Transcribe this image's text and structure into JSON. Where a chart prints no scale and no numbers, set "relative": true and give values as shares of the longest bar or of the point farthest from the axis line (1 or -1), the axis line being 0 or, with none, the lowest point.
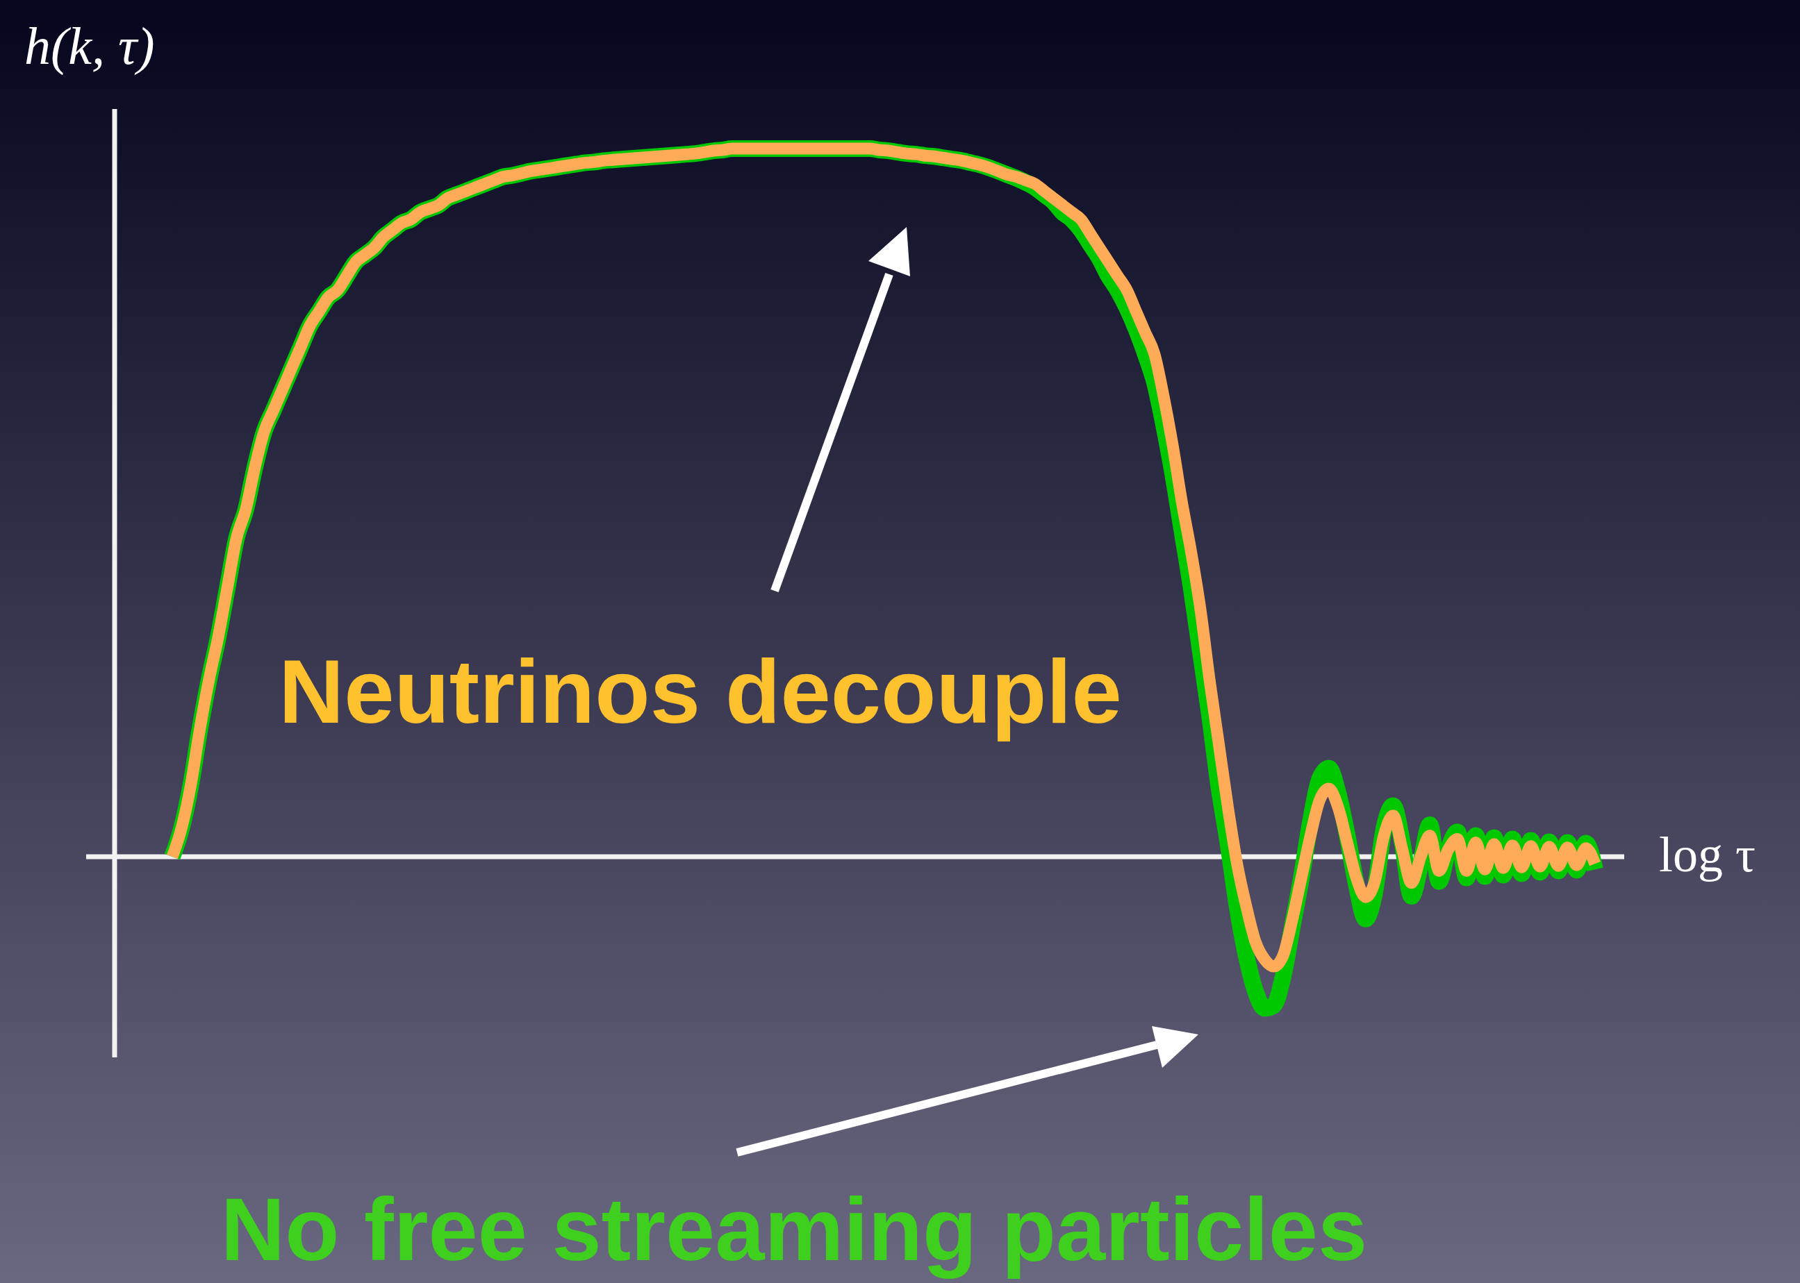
{
  "chart_data": {
    "type": "line",
    "relative": true,
    "xlabel": "log τ",
    "ylabel": "h(k, τ)",
    "annotations": [
      "Neutrinos decouple",
      "No free streaming particles"
    ],
    "categories": [
      null,
      null,
      null,
      null,
      null,
      null,
      null,
      null,
      null,
      null,
      null,
      null,
      null,
      null,
      null,
      null,
      null,
      null,
      null,
      null,
      null,
      null,
      null,
      null,
      null,
      null,
      null,
      null,
      null,
      null,
      null,
      null,
      null,
      null,
      null,
      null,
      null,
      null,
      null,
      null,
      null,
      null,
      null,
      null,
      null,
      null,
      null,
      null,
      null,
      null,
      null,
      null,
      null,
      null,
      null,
      null,
      null,
      null,
      null,
      null,
      null,
      null,
      null,
      null,
      null,
      null,
      null,
      null,
      null,
      null,
      null,
      null,
      null,
      null,
      null,
      null,
      null,
      null,
      null,
      null,
      null,
      null,
      null,
      null,
      null,
      null,
      null,
      null,
      null,
      null,
      null,
      null,
      null,
      null,
      null,
      null,
      null,
      null,
      null,
      null,
      null,
      null,
      null,
      null,
      null,
      null,
      null,
      null,
      null,
      null,
      null,
      null,
      null,
      null,
      null,
      null,
      null,
      null,
      null,
      null,
      null,
      null,
      null,
      null,
      null,
      null,
      null,
      null,
      null,
      null,
      null,
      null,
      null,
      null,
      null,
      null,
      null,
      null,
      null,
      null,
      null,
      null,
      null,
      null,
      null,
      null,
      null,
      null,
      null,
      null,
      null,
      null,
      null,
      null,
      null,
      null
    ],
    "series": [
      {
        "color": "#00c800",
        "values": [
          0,
          0.04,
          0.1,
          0.18,
          0.25,
          0.31,
          0.38,
          0.45,
          0.49,
          0.55,
          0.6,
          0.63,
          0.66,
          0.69,
          0.72,
          0.75,
          0.77,
          0.79,
          0.8,
          0.82,
          0.84,
          0.85,
          0.86,
          0.875,
          0.885,
          0.895,
          0.9,
          0.91,
          0.915,
          0.92,
          0.93,
          0.935,
          0.94,
          0.945,
          0.95,
          0.955,
          0.96,
          0.962,
          0.965,
          0.968,
          0.97,
          0.972,
          0.974,
          0.976,
          0.978,
          0.98,
          0.981,
          0.983,
          0.984,
          0.985,
          0.986,
          0.987,
          0.988,
          0.989,
          0.99,
          0.991,
          0.992,
          0.993,
          0.995,
          0.997,
          0.998,
          1,
          1,
          1,
          1,
          1,
          1,
          1,
          1,
          1,
          1,
          1,
          1,
          1,
          1,
          1,
          1,
          0.998,
          0.997,
          0.995,
          0.993,
          0.992,
          0.99,
          0.989,
          0.987,
          0.985,
          0.983,
          0.98,
          0.977,
          0.973,
          0.968,
          0.963,
          0.958,
          0.952,
          0.945,
          0.935,
          0.925,
          0.91,
          0.9,
          0.885,
          0.865,
          0.845,
          0.82,
          0.8,
          0.775,
          0.745,
          0.71,
          0.67,
          0.61,
          0.54,
          0.46,
          0.38,
          0.29,
          0.2,
          0.1,
          0.02,
          -0.07,
          -0.14,
          -0.19,
          -0.214,
          -0.21,
          -0.17,
          -0.1,
          -0.03,
          0.05,
          0.11,
          0.125,
          0.09,
          0.03,
          -0.04,
          -0.088,
          -0.05,
          0.04,
          0.072,
          0.02,
          -0.056,
          -0.01,
          0.045,
          -0.035,
          0.01,
          0.035,
          -0.03,
          0.03,
          -0.028,
          0.027,
          -0.026,
          0.025,
          -0.024,
          0.023,
          -0.022,
          0.021,
          -0.02,
          0.02,
          -0.019,
          0.019,
          -0.018
        ]
      },
      {
        "color": "#ffab57",
        "values": [
          0,
          0.04,
          0.1,
          0.18,
          0.25,
          0.31,
          0.38,
          0.45,
          0.49,
          0.55,
          0.6,
          0.63,
          0.66,
          0.69,
          0.72,
          0.75,
          0.77,
          0.79,
          0.8,
          0.82,
          0.84,
          0.85,
          0.86,
          0.875,
          0.885,
          0.895,
          0.9,
          0.91,
          0.915,
          0.92,
          0.93,
          0.935,
          0.94,
          0.945,
          0.95,
          0.955,
          0.96,
          0.962,
          0.965,
          0.968,
          0.97,
          0.972,
          0.974,
          0.976,
          0.978,
          0.98,
          0.981,
          0.983,
          0.984,
          0.985,
          0.986,
          0.987,
          0.988,
          0.989,
          0.99,
          0.991,
          0.992,
          0.993,
          0.995,
          0.997,
          0.998,
          1,
          1,
          1,
          1,
          1,
          1,
          1,
          1,
          1,
          1,
          1,
          1,
          1,
          1,
          1,
          1,
          0.998,
          0.997,
          0.995,
          0.993,
          0.992,
          0.99,
          0.989,
          0.987,
          0.985,
          0.983,
          0.98,
          0.977,
          0.973,
          0.968,
          0.963,
          0.96,
          0.955,
          0.95,
          0.94,
          0.93,
          0.92,
          0.91,
          0.9,
          0.88,
          0.86,
          0.84,
          0.82,
          0.8,
          0.77,
          0.74,
          0.71,
          0.65,
          0.58,
          0.5,
          0.43,
          0.35,
          0.25,
          0.16,
          0.07,
          -0.01,
          -0.07,
          -0.12,
          -0.145,
          -0.155,
          -0.14,
          -0.09,
          -0.03,
          0.03,
          0.08,
          0.096,
          0.07,
          0.02,
          -0.03,
          -0.057,
          -0.035,
          0.03,
          0.058,
          0.01,
          -0.037,
          0,
          0.03,
          -0.02,
          0.01,
          0.025,
          -0.02,
          0.02,
          -0.018,
          0.018,
          -0.016,
          0.016,
          -0.015,
          0.015,
          -0.014,
          0.014,
          -0.013,
          0.013,
          -0.012,
          0.012,
          -0.01
        ]
      }
    ]
  }
}
